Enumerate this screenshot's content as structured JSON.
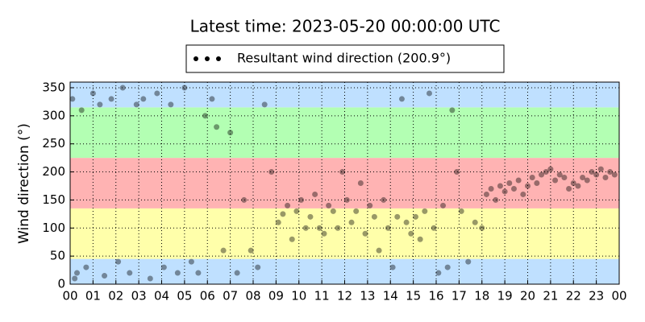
{
  "chart_data": {
    "type": "scatter",
    "title": "Latest time: 2023-05-20 00:00:00 UTC",
    "y_label": "Wind direction (°)",
    "xlim": [
      0,
      24
    ],
    "ylim": [
      0,
      360
    ],
    "xticks": [
      {
        "value": 0,
        "label": "00"
      },
      {
        "value": 1,
        "label": "01"
      },
      {
        "value": 2,
        "label": "02"
      },
      {
        "value": 3,
        "label": "03"
      },
      {
        "value": 4,
        "label": "04"
      },
      {
        "value": 5,
        "label": "05"
      },
      {
        "value": 6,
        "label": "06"
      },
      {
        "value": 7,
        "label": "07"
      },
      {
        "value": 8,
        "label": "08"
      },
      {
        "value": 9,
        "label": "09"
      },
      {
        "value": 10,
        "label": "10"
      },
      {
        "value": 11,
        "label": "11"
      },
      {
        "value": 12,
        "label": "12"
      },
      {
        "value": 13,
        "label": "13"
      },
      {
        "value": 14,
        "label": "14"
      },
      {
        "value": 15,
        "label": "15"
      },
      {
        "value": 16,
        "label": "16"
      },
      {
        "value": 17,
        "label": "17"
      },
      {
        "value": 18,
        "label": "18"
      },
      {
        "value": 19,
        "label": "19"
      },
      {
        "value": 20,
        "label": "20"
      },
      {
        "value": 21,
        "label": "21"
      },
      {
        "value": 22,
        "label": "22"
      },
      {
        "value": 23,
        "label": "23"
      },
      {
        "value": 24,
        "label": "00"
      }
    ],
    "yticks": [
      0,
      50,
      100,
      150,
      200,
      250,
      300,
      350
    ],
    "grid": true,
    "bands": [
      {
        "from": 0,
        "to": 45,
        "color": "#bfe0ff"
      },
      {
        "from": 45,
        "to": 135,
        "color": "#ffffaa"
      },
      {
        "from": 135,
        "to": 225,
        "color": "#ffb3b3"
      },
      {
        "from": 225,
        "to": 315,
        "color": "#b3ffb3"
      },
      {
        "from": 315,
        "to": 360,
        "color": "#bfe0ff"
      }
    ],
    "legend": "top",
    "series": [
      {
        "name": "Resultant wind direction (200.9°)",
        "color": "#000000",
        "alpha": 0.4,
        "x": [
          0.1,
          0.3,
          0.5,
          0.2,
          0.7,
          1.0,
          1.3,
          1.5,
          1.8,
          2.1,
          2.3,
          2.6,
          2.9,
          3.2,
          3.5,
          3.8,
          4.1,
          4.4,
          4.7,
          5.0,
          5.3,
          5.6,
          5.9,
          6.2,
          6.4,
          6.7,
          7.0,
          7.3,
          7.6,
          7.9,
          8.2,
          8.5,
          8.8,
          9.1,
          9.3,
          9.5,
          9.7,
          9.9,
          10.1,
          10.3,
          10.5,
          10.7,
          10.9,
          11.1,
          11.3,
          11.5,
          11.7,
          11.9,
          12.1,
          12.3,
          12.5,
          12.7,
          12.9,
          13.1,
          13.3,
          13.5,
          13.7,
          13.9,
          14.1,
          14.3,
          14.5,
          14.7,
          14.9,
          15.1,
          15.3,
          15.5,
          15.7,
          15.9,
          16.1,
          16.3,
          16.5,
          16.7,
          16.9,
          17.1,
          17.4,
          17.7,
          18.0,
          18.2,
          18.4,
          18.6,
          18.8,
          19.0,
          19.2,
          19.4,
          19.6,
          19.8,
          20.0,
          20.2,
          20.4,
          20.6,
          20.8,
          21.0,
          21.2,
          21.4,
          21.6,
          21.8,
          22.0,
          22.2,
          22.4,
          22.6,
          22.8,
          23.0,
          23.2,
          23.4,
          23.6,
          23.8
        ],
        "values": [
          330,
          20,
          310,
          10,
          30,
          340,
          320,
          15,
          330,
          40,
          350,
          20,
          320,
          330,
          10,
          340,
          30,
          320,
          20,
          350,
          40,
          20,
          300,
          330,
          280,
          60,
          270,
          20,
          150,
          60,
          30,
          320,
          200,
          110,
          125,
          140,
          80,
          130,
          150,
          100,
          120,
          160,
          100,
          90,
          140,
          130,
          100,
          200,
          150,
          110,
          130,
          180,
          90,
          140,
          120,
          60,
          150,
          100,
          30,
          120,
          330,
          110,
          90,
          120,
          80,
          130,
          340,
          100,
          20,
          140,
          30,
          310,
          200,
          130,
          40,
          110,
          100,
          160,
          170,
          150,
          175,
          165,
          180,
          170,
          185,
          160,
          175,
          190,
          180,
          195,
          200,
          205,
          185,
          195,
          190,
          170,
          180,
          175,
          190,
          185,
          200,
          195,
          205,
          190,
          200,
          195
        ]
      }
    ]
  }
}
